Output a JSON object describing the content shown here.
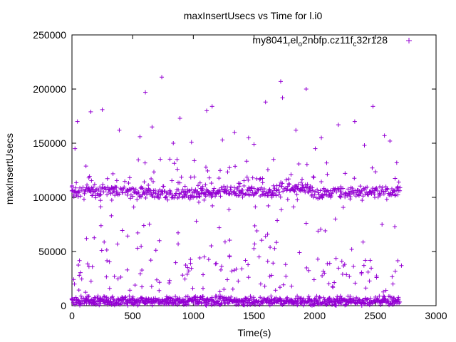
{
  "chart_data": {
    "type": "scatter",
    "title": "maxInsertUsecs vs Time for l.i0",
    "xlabel": "Time(s)",
    "ylabel": "maxInsertUsecs",
    "xlim": [
      0,
      3000
    ],
    "ylim": [
      0,
      250000
    ],
    "x_ticks": [
      "0",
      "500",
      "1000",
      "1500",
      "2000",
      "2500",
      "3000"
    ],
    "y_ticks": [
      "0",
      "50000",
      "100000",
      "150000",
      "200000",
      "250000"
    ],
    "grid": false,
    "legend_position": "top-right",
    "marker": "+",
    "series": [
      {
        "name_parts": [
          "my8041",
          "r",
          "el",
          "o",
          "2nofp.cz11f",
          "c",
          "32r128"
        ],
        "name_text": "my8041_rel_o2nofp.cz11f_c32r128",
        "color": "#9400d3",
        "x_start": 0,
        "x_end": 2700,
        "x_step": 5,
        "dominant_bands": [
          {
            "center": 106000,
            "spread": 4000
          },
          {
            "center": 1500,
            "spread": 1500
          }
        ],
        "sample_points": [
          [
            740,
            211000
          ],
          [
            1720,
            207000
          ],
          [
            1930,
            200000
          ],
          [
            605,
            197000
          ],
          [
            2480,
            184000
          ],
          [
            1155,
            184000
          ],
          [
            1595,
            188000
          ],
          [
            1735,
            192000
          ],
          [
            155,
            179000
          ],
          [
            1110,
            180000
          ],
          [
            890,
            173000
          ],
          [
            250,
            181000
          ],
          [
            2330,
            170000
          ],
          [
            2195,
            167000
          ],
          [
            660,
            165000
          ],
          [
            2575,
            157000
          ],
          [
            45,
            170000
          ],
          [
            390,
            162000
          ],
          [
            1845,
            162000
          ],
          [
            1340,
            160000
          ],
          [
            560,
            156000
          ],
          [
            835,
            150000
          ],
          [
            2055,
            155000
          ],
          [
            985,
            151000
          ],
          [
            1240,
            153000
          ],
          [
            1455,
            155000
          ],
          [
            2620,
            152000
          ],
          [
            2410,
            148000
          ],
          [
            25,
            145000
          ],
          [
            1500,
            149000
          ],
          [
            2005,
            145000
          ],
          [
            325,
            83000
          ],
          [
            2170,
            80000
          ],
          [
            2660,
            73000
          ],
          [
            1930,
            76000
          ],
          [
            1025,
            78000
          ],
          [
            120,
            62000
          ],
          [
            720,
            60000
          ],
          [
            1595,
            64000
          ],
          [
            2555,
            75000
          ],
          [
            245,
            51000
          ],
          [
            540,
            53000
          ],
          [
            875,
            57000
          ],
          [
            1505,
            57000
          ],
          [
            2305,
            52000
          ],
          [
            2715,
            37000
          ],
          [
            1875,
            49000
          ],
          [
            1090,
            45000
          ],
          [
            140,
            36000
          ],
          [
            455,
            33000
          ],
          [
            1400,
            34000
          ],
          [
            2080,
            30000
          ],
          [
            650,
            42000
          ],
          [
            1190,
            39000
          ],
          [
            1760,
            38000
          ],
          [
            2440,
            31000
          ],
          [
            60,
            28000
          ],
          [
            350,
            27000
          ],
          [
            950,
            29000
          ],
          [
            1645,
            28000
          ],
          [
            2230,
            29000
          ],
          [
            2510,
            26000
          ],
          [
            1280,
            24000
          ],
          [
            1995,
            24000
          ],
          [
            800,
            21000
          ],
          [
            2645,
            20000
          ],
          [
            520,
            19000
          ],
          [
            1810,
            18000
          ],
          [
            1555,
            20000
          ],
          [
            2150,
            17000
          ],
          [
            1080,
            16000
          ],
          [
            310,
            16000
          ]
        ]
      }
    ]
  }
}
